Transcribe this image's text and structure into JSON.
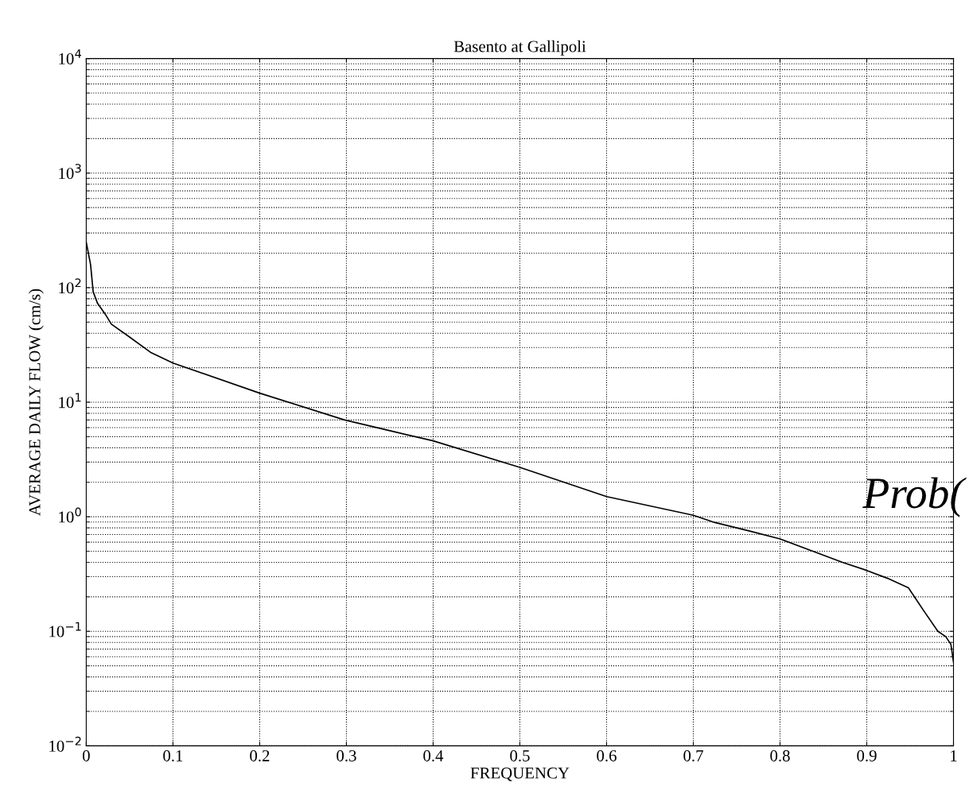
{
  "chart_data": {
    "type": "line",
    "title": "Basento at Gallipoli",
    "xlabel": "FREQUENCY",
    "ylabel": "AVERAGE DAILY FLOW (cm/s)",
    "series": [
      {
        "color": "#000000",
        "x": [
          0,
          0.005,
          0.008,
          0.013,
          0.023,
          0.029,
          0.048,
          0.075,
          0.1,
          0.2,
          0.298,
          0.356,
          0.4,
          0.5,
          0.6,
          0.7,
          0.725,
          0.765,
          0.8,
          0.844,
          0.872,
          0.9,
          0.924,
          0.948,
          0.966,
          0.982,
          0.991,
          0.997,
          1.0
        ],
        "values": [
          250,
          159,
          92,
          73,
          57,
          48,
          38,
          27,
          22,
          12,
          7.0,
          5.5,
          4.6,
          2.7,
          1.5,
          1.03,
          0.89,
          0.75,
          0.64,
          0.48,
          0.4,
          0.34,
          0.29,
          0.24,
          0.15,
          0.1,
          0.09,
          0.077,
          0.054
        ]
      }
    ],
    "log": "y",
    "xlim": [
      0,
      1
    ],
    "ylim": [
      0.01,
      10000
    ],
    "xticks": [
      0,
      0.1,
      0.2,
      0.3,
      0.4,
      0.5,
      0.6,
      0.7,
      0.8,
      0.9,
      1
    ],
    "yticks": [
      {
        "value": 0.01,
        "label": "10$^{−2}$"
      },
      {
        "value": 0.1,
        "label": "10$^{−1}$"
      },
      {
        "value": 1,
        "label": "10$^{0}$"
      },
      {
        "value": 10,
        "label": "10$^{1}$"
      },
      {
        "value": 100,
        "label": "10$^{2}$"
      },
      {
        "value": 1000,
        "label": "10$^{3}$"
      },
      {
        "value": 10000,
        "label": "10$^{4}$"
      }
    ],
    "grid": true,
    "marker": "none",
    "line_style": "solid",
    "annotations": [
      "Prob("
    ]
  }
}
